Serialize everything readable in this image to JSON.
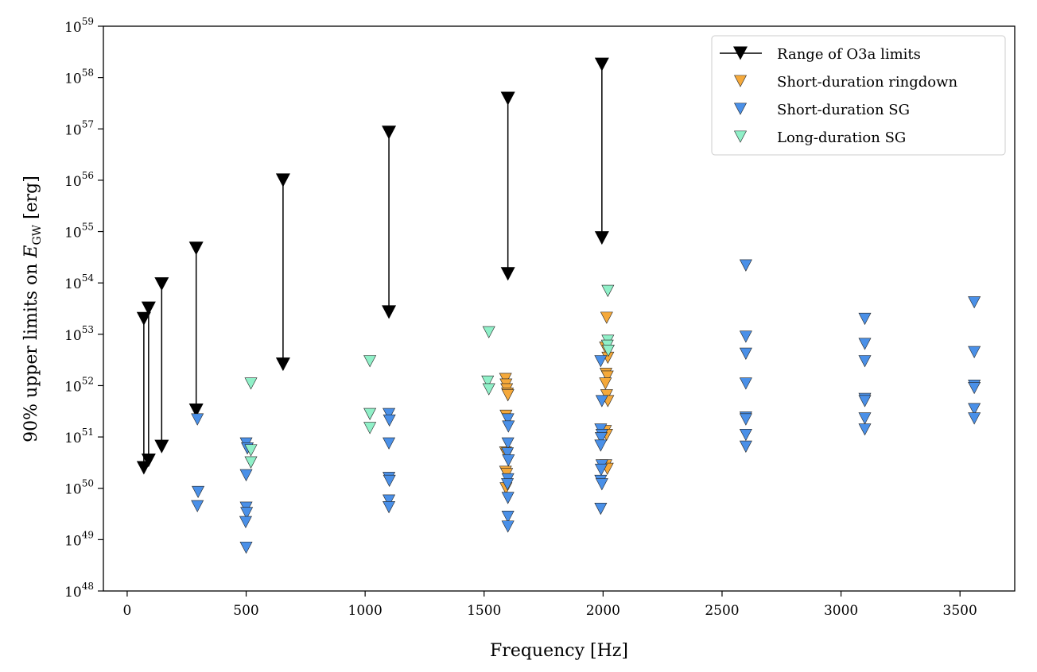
{
  "chart_data": {
    "type": "scatter",
    "xlabel": "Frequency [Hz]",
    "ylabel_parts": {
      "prefix": "90% upper limits on ",
      "symbol": "E",
      "subscript": "GW",
      "suffix": " [erg]"
    },
    "xlim": [
      -100,
      3730
    ],
    "ylim_log10": [
      48,
      59
    ],
    "y_scale": "log",
    "x_ticks": [
      0,
      500,
      1000,
      1500,
      2000,
      2500,
      3000,
      3500
    ],
    "y_ticks": [
      {
        "base": "10",
        "exp": "48"
      },
      {
        "base": "10",
        "exp": "49"
      },
      {
        "base": "10",
        "exp": "50"
      },
      {
        "base": "10",
        "exp": "51"
      },
      {
        "base": "10",
        "exp": "52"
      },
      {
        "base": "10",
        "exp": "53"
      },
      {
        "base": "10",
        "exp": "54"
      },
      {
        "base": "10",
        "exp": "55"
      },
      {
        "base": "10",
        "exp": "56"
      },
      {
        "base": "10",
        "exp": "57"
      },
      {
        "base": "10",
        "exp": "58"
      },
      {
        "base": "10",
        "exp": "59"
      }
    ],
    "grid": false,
    "legend_position": "top-right",
    "colors": {
      "range": "#000000",
      "ringdown": "#f5a93b",
      "short_sg": "#4a90e8",
      "long_sg": "#90f0c8"
    },
    "series": [
      {
        "name": "Range of O3a limits",
        "kind": "range",
        "ranges": [
          {
            "x": 70,
            "hi": 2e+53,
            "lo": 2.5e+50
          },
          {
            "x": 90,
            "hi": 3.2e+53,
            "lo": 3.5e+50
          },
          {
            "x": 145,
            "hi": 9.5e+53,
            "lo": 6.5e+50
          },
          {
            "x": 290,
            "hi": 4.7e+54,
            "lo": 3.3e+51
          },
          {
            "x": 655,
            "hi": 1e+56,
            "lo": 2.6e+52
          },
          {
            "x": 1100,
            "hi": 8.5e+56,
            "lo": 2.7e+53
          },
          {
            "x": 1600,
            "hi": 3.9e+57,
            "lo": 1.5e+54
          },
          {
            "x": 1995,
            "hi": 1.8e+58,
            "lo": 7.5e+54
          }
        ]
      },
      {
        "name": "Short-duration ringdown",
        "kind": "points",
        "points": [
          [
            1590,
            1.35e+52
          ],
          [
            1592,
            1.05e+52
          ],
          [
            1595,
            8.5e+51
          ],
          [
            1598,
            7e+51
          ],
          [
            1600,
            6.5e+51
          ],
          [
            1592,
            2.6e+51
          ],
          [
            1590,
            5e+50
          ],
          [
            1595,
            4.5e+50
          ],
          [
            1590,
            2.1e+50
          ],
          [
            1595,
            1.9e+50
          ],
          [
            1592,
            1e+50
          ],
          [
            2015,
            2.1e+53
          ],
          [
            2010,
            5.5e+52
          ],
          [
            2020,
            3.5e+52
          ],
          [
            2012,
            1.7e+52
          ],
          [
            2018,
            1.5e+52
          ],
          [
            2010,
            1.1e+52
          ],
          [
            2015,
            6.5e+51
          ],
          [
            2020,
            5e+51
          ],
          [
            2010,
            1.3e+51
          ],
          [
            2015,
            1.1e+51
          ],
          [
            2012,
            2.8e+50
          ],
          [
            2018,
            2.4e+50
          ]
        ]
      },
      {
        "name": "Short-duration SG",
        "kind": "points",
        "points": [
          [
            295,
            2.2e+51
          ],
          [
            298,
            8.5e+49
          ],
          [
            295,
            4.5e+49
          ],
          [
            500,
            7.5e+50
          ],
          [
            505,
            6e+50
          ],
          [
            500,
            1.8e+50
          ],
          [
            500,
            4.2e+49
          ],
          [
            502,
            3.3e+49
          ],
          [
            498,
            2.2e+49
          ],
          [
            500,
            7e+48
          ],
          [
            1100,
            2.8e+51
          ],
          [
            1102,
            2.1e+51
          ],
          [
            1100,
            7.5e+50
          ],
          [
            1100,
            1.6e+50
          ],
          [
            1102,
            1.4e+50
          ],
          [
            1100,
            5.8e+49
          ],
          [
            1100,
            4.3e+49
          ],
          [
            1600,
            2.2e+51
          ],
          [
            1602,
            1.6e+51
          ],
          [
            1600,
            7.5e+50
          ],
          [
            1598,
            4.8e+50
          ],
          [
            1602,
            3.5e+50
          ],
          [
            1600,
            1.5e+50
          ],
          [
            1598,
            1.2e+50
          ],
          [
            1600,
            6.5e+49
          ],
          [
            1600,
            2.8e+49
          ],
          [
            1600,
            1.8e+49
          ],
          [
            1990,
            3e+52
          ],
          [
            1995,
            5e+51
          ],
          [
            1990,
            1.4e+51
          ],
          [
            1995,
            1.1e+51
          ],
          [
            1992,
            9.5e+50
          ],
          [
            1990,
            6.8e+50
          ],
          [
            1995,
            2.8e+50
          ],
          [
            1992,
            2.3e+50
          ],
          [
            1990,
            1.4e+50
          ],
          [
            1995,
            1.2e+50
          ],
          [
            1990,
            4e+49
          ],
          [
            2600,
            2.2e+54
          ],
          [
            2600,
            9e+52
          ],
          [
            2600,
            4.2e+52
          ],
          [
            2600,
            1.1e+52
          ],
          [
            2600,
            2.4e+51
          ],
          [
            2600,
            2.2e+51
          ],
          [
            2600,
            1.1e+51
          ],
          [
            2600,
            6.5e+50
          ],
          [
            3100,
            2e+53
          ],
          [
            3100,
            6.5e+52
          ],
          [
            3100,
            3e+52
          ],
          [
            3100,
            5.5e+51
          ],
          [
            3100,
            5e+51
          ],
          [
            3100,
            2.3e+51
          ],
          [
            3100,
            1.4e+51
          ],
          [
            3560,
            4.2e+53
          ],
          [
            3560,
            4.5e+52
          ],
          [
            3560,
            1e+52
          ],
          [
            3560,
            9e+51
          ],
          [
            3560,
            3.5e+51
          ],
          [
            3560,
            2.3e+51
          ]
        ]
      },
      {
        "name": "Long-duration SG",
        "kind": "points",
        "points": [
          [
            520,
            1.1e+52
          ],
          [
            520,
            5.5e+50
          ],
          [
            520,
            3.2e+50
          ],
          [
            1020,
            3e+52
          ],
          [
            1020,
            2.8e+51
          ],
          [
            1020,
            1.5e+51
          ],
          [
            1520,
            1.1e+53
          ],
          [
            1515,
            1.2e+52
          ],
          [
            1520,
            8.5e+51
          ],
          [
            2020,
            7e+53
          ],
          [
            2020,
            7.5e+52
          ],
          [
            2018,
            6e+52
          ],
          [
            2022,
            4.8e+52
          ]
        ]
      }
    ]
  }
}
